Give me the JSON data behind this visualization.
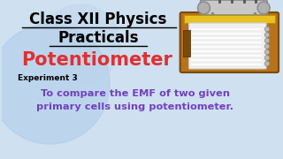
{
  "bg_color": "#cfe0f0",
  "title_line1": "Class XII Physics",
  "title_line2": "Practicals",
  "title_color": "#000000",
  "title_fontsize": 12,
  "potentiometer_text": "Potentiometer",
  "potentiometer_color": "#e03030",
  "potentiometer_fontsize": 15,
  "experiment_label": "Experiment 3",
  "experiment_fontsize": 6.5,
  "experiment_color": "#000000",
  "desc_line1": "To compare the EMF of two given",
  "desc_line2": "primary cells using potentiometer.",
  "desc_color": "#7040c0",
  "desc_fontsize": 8.2
}
